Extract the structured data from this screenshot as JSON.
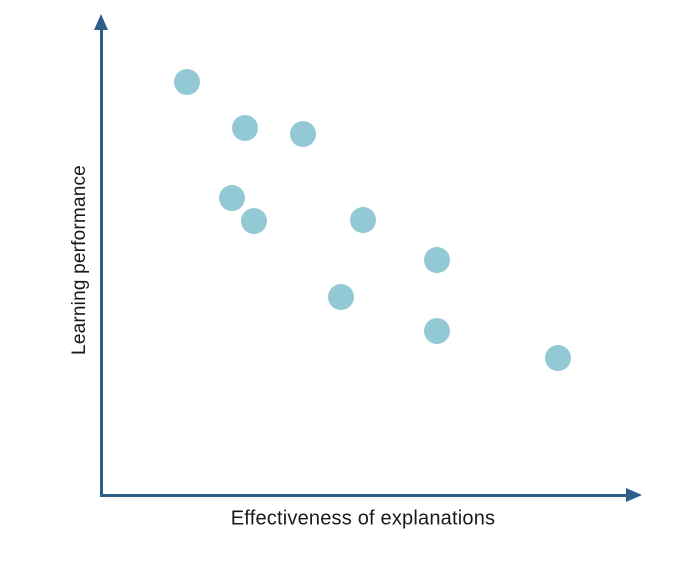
{
  "figure": {
    "xlabel": "Effectiveness of explanations",
    "ylabel": "Learning performance"
  },
  "colors": {
    "axis": "#2d5e8a",
    "point": "#92c9d4",
    "text": "#1a1a1a",
    "background": "#ffffff"
  },
  "chart_data": {
    "type": "scatter",
    "title": "",
    "xlabel": "Effectiveness of explanations",
    "ylabel": "Learning performance",
    "x_range": [
      0,
      100
    ],
    "y_range": [
      0,
      100
    ],
    "grid": false,
    "legend": false,
    "axis_tick_labels": [],
    "points": [
      {
        "x": 16.0,
        "y": 86.5
      },
      {
        "x": 26.7,
        "y": 76.9
      },
      {
        "x": 37.5,
        "y": 75.6
      },
      {
        "x": 24.3,
        "y": 62.3
      },
      {
        "x": 28.4,
        "y": 57.5
      },
      {
        "x": 48.6,
        "y": 57.7
      },
      {
        "x": 62.3,
        "y": 49.4
      },
      {
        "x": 44.5,
        "y": 41.7
      },
      {
        "x": 62.3,
        "y": 34.6
      },
      {
        "x": 84.8,
        "y": 29.0
      }
    ]
  }
}
